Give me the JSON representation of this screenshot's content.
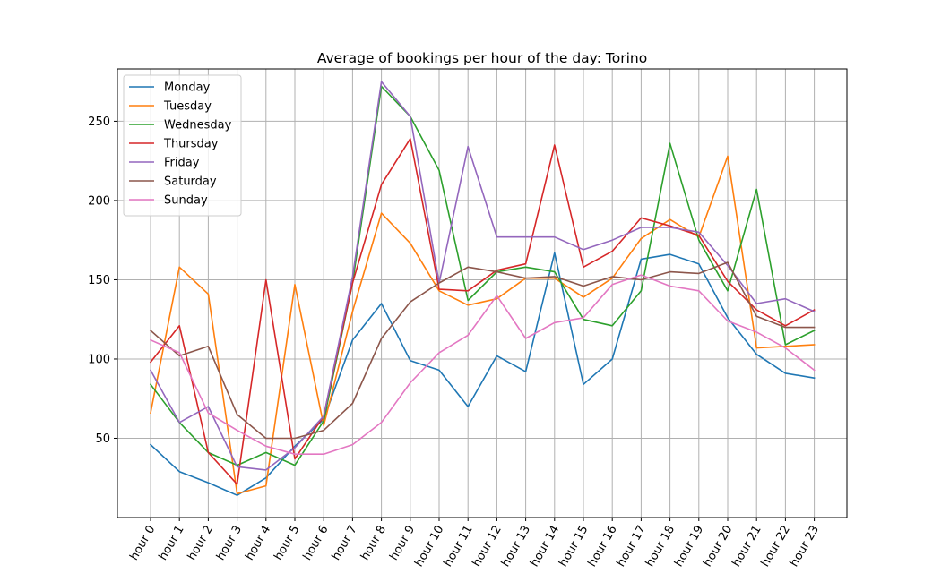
{
  "chart_data": {
    "type": "line",
    "title": "Average of bookings per hour of the day: Torino",
    "xlabel": "",
    "ylabel": "",
    "categories": [
      "hour 0",
      "hour 1",
      "hour 2",
      "hour 3",
      "hour 4",
      "hour 5",
      "hour 6",
      "hour 7",
      "hour 8",
      "hour 9",
      "hour 10",
      "hour 11",
      "hour 12",
      "hour 13",
      "hour 14",
      "hour 15",
      "hour 16",
      "hour 17",
      "hour 18",
      "hour 19",
      "hour 20",
      "hour 21",
      "hour 22",
      "hour 23"
    ],
    "ylim": [
      0,
      283
    ],
    "yticks": [
      50,
      100,
      150,
      200,
      250
    ],
    "grid": true,
    "legend_position": "top-left",
    "series": [
      {
        "name": "Monday",
        "color": "#1f77b4",
        "values": [
          46,
          29,
          22,
          14,
          25,
          45,
          62,
          112,
          135,
          99,
          93,
          70,
          102,
          92,
          167,
          84,
          100,
          163,
          166,
          160,
          126,
          103,
          91,
          88
        ]
      },
      {
        "name": "Tuesday",
        "color": "#ff7f0e",
        "values": [
          66,
          158,
          141,
          15,
          20,
          147,
          58,
          130,
          192,
          173,
          143,
          134,
          138,
          151,
          151,
          139,
          151,
          176,
          188,
          177,
          228,
          107,
          108,
          109
        ]
      },
      {
        "name": "Wednesday",
        "color": "#2ca02c",
        "values": [
          84,
          60,
          41,
          33,
          41,
          33,
          61,
          148,
          272,
          253,
          219,
          137,
          155,
          158,
          155,
          125,
          121,
          143,
          236,
          175,
          143,
          207,
          109,
          118
        ]
      },
      {
        "name": "Thursday",
        "color": "#d62728",
        "values": [
          98,
          121,
          41,
          21,
          150,
          37,
          64,
          148,
          210,
          239,
          144,
          143,
          156,
          160,
          235,
          158,
          168,
          189,
          184,
          178,
          149,
          131,
          121,
          131
        ]
      },
      {
        "name": "Friday",
        "color": "#9467bd",
        "values": [
          93,
          60,
          70,
          32,
          30,
          44,
          64,
          152,
          275,
          253,
          148,
          234,
          177,
          177,
          177,
          169,
          175,
          183,
          183,
          180,
          159,
          135,
          138,
          130
        ]
      },
      {
        "name": "Saturday",
        "color": "#8c564b",
        "values": [
          118,
          102,
          108,
          65,
          50,
          50,
          55,
          72,
          113,
          136,
          148,
          158,
          155,
          151,
          152,
          146,
          152,
          150,
          155,
          154,
          161,
          127,
          120,
          120
        ]
      },
      {
        "name": "Sunday",
        "color": "#e377c2",
        "values": [
          112,
          104,
          66,
          55,
          45,
          40,
          40,
          46,
          60,
          85,
          104,
          115,
          140,
          113,
          123,
          126,
          147,
          153,
          146,
          143,
          124,
          117,
          107,
          93
        ]
      }
    ]
  }
}
